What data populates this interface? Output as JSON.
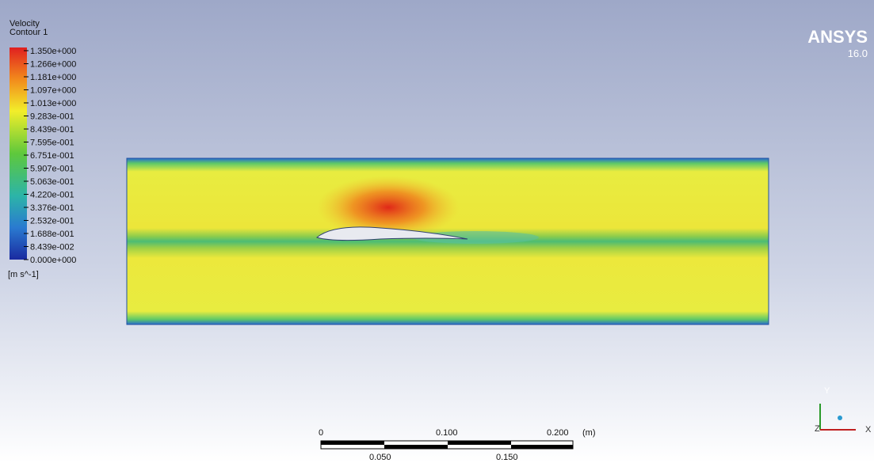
{
  "legend": {
    "title": [
      "Velocity",
      "Contour 1"
    ],
    "labels": [
      "1.350e+000",
      "1.266e+000",
      "1.181e+000",
      "1.097e+000",
      "1.013e+000",
      "9.283e-001",
      "8.439e-001",
      "7.595e-001",
      "6.751e-001",
      "5.907e-001",
      "5.063e-001",
      "4.220e-001",
      "3.376e-001",
      "2.532e-001",
      "1.688e-001",
      "8.439e-002",
      "0.000e+000"
    ],
    "unit": "[m s^-1]"
  },
  "brand": {
    "name": "ANSYS",
    "version": "16.0"
  },
  "scale_bar": {
    "top_labels": [
      "0",
      "0.100",
      "0.200"
    ],
    "unit": "(m)",
    "bottom_labels": [
      "0.050",
      "0.150"
    ]
  },
  "triad": {
    "y": "Y",
    "z": "Z",
    "x": "X"
  }
}
